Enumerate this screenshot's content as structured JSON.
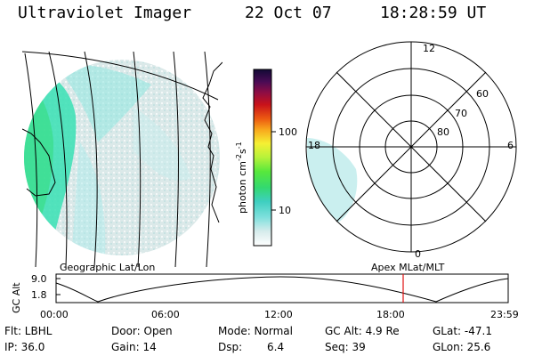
{
  "header": {
    "title": "Ultraviolet Imager",
    "date": "22 Oct 07",
    "time": "18:28:59 UT"
  },
  "colorbar": {
    "unit_label": "photon cm",
    "unit_exp1": "-2",
    "unit_s": "s",
    "unit_exp2": "-1",
    "ticks": [
      "100",
      "10"
    ]
  },
  "polar_plot": {
    "mlt_labels": {
      "top": "12",
      "left": "18",
      "right": "6",
      "bottom": "0"
    },
    "lat_labels": [
      "60",
      "70",
      "80"
    ]
  },
  "panel_labels": {
    "left": "Geographic Lat/Lon",
    "right": "Apex  MLat/MLT"
  },
  "altitude_plot": {
    "ylabel": "GC Alt",
    "yticks": [
      "9.0",
      "1.8"
    ],
    "xticks": [
      "00:00",
      "06:00",
      "12:00",
      "18:00",
      "23:59"
    ]
  },
  "info": {
    "row1": {
      "flt": "Flt: LBHL",
      "door": "Door: Open",
      "mode": "Mode: Normal",
      "gcalt": "GC Alt: 4.9 Re",
      "glat": "GLat: -47.1"
    },
    "row2": {
      "ip": "IP: 36.0",
      "gain": "Gain: 14",
      "dsp_label": "Dsp:",
      "dsp_value": "6.4",
      "seq": "Seq: 39",
      "glon": "GLon:  25.6"
    }
  }
}
